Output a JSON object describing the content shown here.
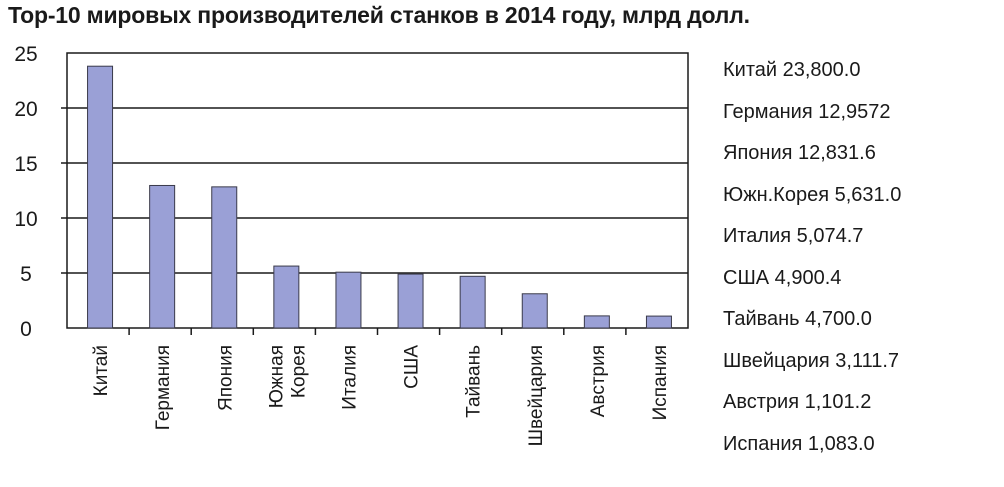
{
  "chart_data": {
    "type": "bar",
    "title": "Top-10 мировых производителей станков в 2014 году, млрд долл.",
    "categories": [
      "Китай",
      "Германия",
      "Япония",
      "Южная Корея",
      "Италия",
      "США",
      "Тайвань",
      "Швейцария",
      "Австрия",
      "Испания"
    ],
    "category_lines": [
      [
        "Китай"
      ],
      [
        "Германия"
      ],
      [
        "Япония"
      ],
      [
        "Южная",
        "Корея"
      ],
      [
        "Италия"
      ],
      [
        "США"
      ],
      [
        "Тайвань"
      ],
      [
        "Швейцария"
      ],
      [
        "Австрия"
      ],
      [
        "Испания"
      ]
    ],
    "values": [
      23.8,
      12.9572,
      12.8316,
      5.631,
      5.0747,
      4.9004,
      4.7,
      3.1117,
      1.1012,
      1.083
    ],
    "xlabel": "",
    "ylabel": "",
    "ylim": [
      0,
      25
    ],
    "yticks": [
      0,
      5,
      10,
      15,
      20,
      25
    ],
    "grid": true,
    "legend_placement": "right",
    "legend": [
      "Китай 23,800.0",
      "Германия 12,9572",
      "Япония 12,831.6",
      "Южн.Корея 5,631.0",
      "Италия 5,074.7",
      "США 4,900.4",
      "Тайвань 4,700.0",
      "Швейцария 3,111.7",
      "Австрия 1,101.2",
      "Испания 1,083.0"
    ],
    "colors": {
      "bar": "#9aa0d6",
      "bar_border": "#3a3a4a",
      "grid": "#1a1a1a"
    }
  }
}
